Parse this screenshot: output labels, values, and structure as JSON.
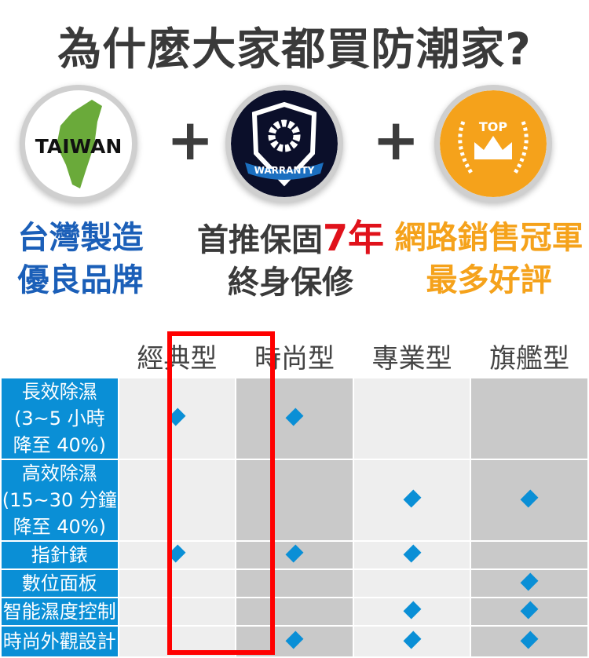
{
  "title": "為什麼大家都買防潮家?",
  "badges": [
    {
      "icon": "taiwan-map-icon",
      "text": "TAIWAN",
      "color": "#6aaa3a"
    },
    {
      "icon": "warranty-shield-icon",
      "text": "WARRANTY",
      "color": "#0b0f2a"
    },
    {
      "icon": "top-crown-icon",
      "text": "TOP",
      "color": "#f5a21b"
    }
  ],
  "plus": "+",
  "captions": [
    {
      "line1": "台灣製造",
      "line2": "優良品牌",
      "color": "#1b5fb8"
    },
    {
      "line1_pre": "首推保固",
      "line1_highlight": "7年",
      "line2": "終身保修",
      "color": "#3a3a3a",
      "highlight_color": "#e0121b"
    },
    {
      "line1": "網路銷售冠軍",
      "line2": "最多好評",
      "color": "#f5a21b"
    }
  ],
  "table": {
    "columns": [
      "經典型",
      "時尚型",
      "專業型",
      "旗艦型"
    ],
    "highlight_column": 0,
    "rows": [
      {
        "label": [
          "長效除濕",
          "(3~5 小時",
          "降至 40%)"
        ],
        "marks": [
          true,
          true,
          false,
          false
        ]
      },
      {
        "label": [
          "高效除濕",
          "(15~30 分鐘",
          "降至 40%)"
        ],
        "marks": [
          false,
          false,
          true,
          true
        ]
      },
      {
        "label": [
          "指針錶"
        ],
        "marks": [
          true,
          true,
          true,
          false
        ]
      },
      {
        "label": [
          "數位面板"
        ],
        "marks": [
          false,
          false,
          false,
          true
        ]
      },
      {
        "label": [
          "智能濕度控制"
        ],
        "marks": [
          false,
          false,
          true,
          true
        ]
      },
      {
        "label": [
          "時尚外觀設計"
        ],
        "marks": [
          false,
          true,
          true,
          true
        ]
      }
    ]
  }
}
